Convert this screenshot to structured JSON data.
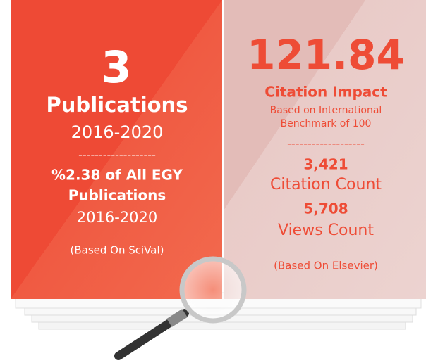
{
  "left": {
    "count": "3",
    "label": "Publications",
    "period": "2016-2020",
    "divider": "-------------------",
    "share_lines": [
      "%2.38 of All EGY",
      "Publications"
    ],
    "share_period": "2016-2020",
    "source": "(Based On SciVal)"
  },
  "right": {
    "impact": "121.84",
    "impact_label": "Citation Impact",
    "benchmark_lines": [
      "Based on International",
      "Benchmark of 100"
    ],
    "divider": "-------------------",
    "citations": "3,421",
    "citations_label": "Citation Count",
    "views": "5,708",
    "views_label": "Views Count",
    "source": "(Based On Elsevier)"
  }
}
